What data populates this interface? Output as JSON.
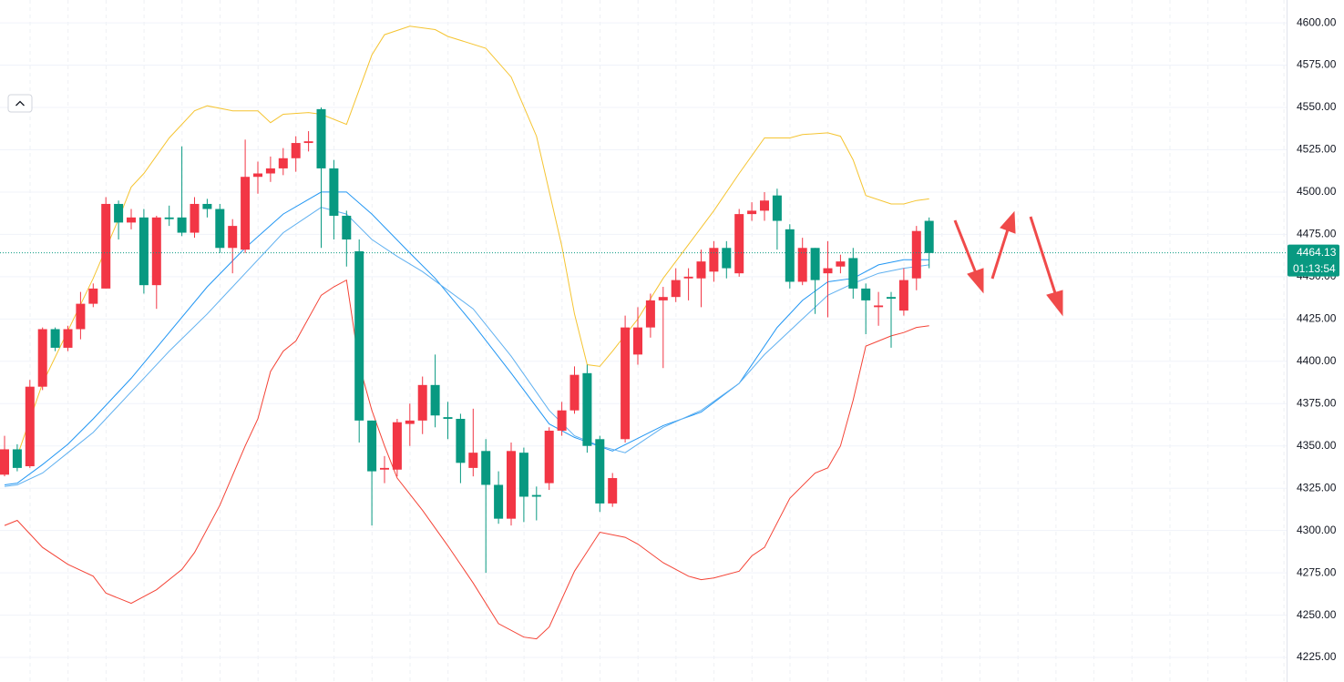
{
  "chart_data": {
    "type": "candlestick",
    "open": [
      4333,
      4348,
      4338,
      4385,
      4419,
      4408,
      4419,
      4434,
      4443,
      4493,
      4482,
      4485,
      4445,
      4485,
      4485,
      4476,
      4493,
      4490,
      4467,
      4466,
      4509,
      4511,
      4514,
      4520,
      4529,
      4549,
      4514,
      4486,
      4465,
      4365,
      4336,
      4336,
      4363,
      4365,
      4386,
      4367,
      4366,
      4337,
      4347,
      4327,
      4307,
      4346,
      4321,
      4328,
      4359,
      4371,
      4393,
      4354,
      4316,
      4354,
      4404,
      4420,
      4436,
      4438,
      4449,
      4449,
      4453,
      4467,
      4452,
      4487,
      4489,
      4498,
      4478,
      4447,
      4467,
      4452,
      4456,
      4461,
      4443,
      4432,
      4438,
      4430,
      4449,
      4483
    ],
    "high": [
      4356,
      4351,
      4389,
      4420,
      4420,
      4421,
      4441,
      4446,
      4497,
      4495,
      4490,
      4490,
      4486,
      4492,
      4527,
      4497,
      4496,
      4493,
      4484,
      4531,
      4518,
      4521,
      4526,
      4533,
      4536,
      4550,
      4519,
      4489,
      4472,
      4365,
      4344,
      4366,
      4375,
      4391,
      4404,
      4376,
      4369,
      4372,
      4354,
      4335,
      4352,
      4349,
      4326,
      4361,
      4376,
      4397,
      4398,
      4356,
      4334,
      4427,
      4432,
      4440,
      4444,
      4455,
      4455,
      4466,
      4471,
      4471,
      4490,
      4494,
      4500,
      4502,
      4481,
      4473,
      4467,
      4471,
      4463,
      4467,
      4446,
      4441,
      4441,
      4455,
      4480,
      4485
    ],
    "low": [
      4332,
      4335,
      4337,
      4383,
      4406,
      4406,
      4413,
      4432,
      4443,
      4472,
      4478,
      4440,
      4431,
      4480,
      4474,
      4473,
      4485,
      4464,
      4452,
      4464,
      4499,
      4506,
      4510,
      4512,
      4524,
      4467,
      4472,
      4456,
      4352,
      4303,
      4328,
      4332,
      4350,
      4357,
      4361,
      4354,
      4328,
      4332,
      4275,
      4304,
      4303,
      4305,
      4306,
      4324,
      4356,
      4369,
      4346,
      4311,
      4314,
      4352,
      4398,
      4414,
      4396,
      4435,
      4436,
      4432,
      4447,
      4449,
      4450,
      4483,
      4483,
      4466,
      4443,
      4445,
      4428,
      4426,
      4452,
      4437,
      4416,
      4421,
      4408,
      4427,
      4442,
      4455
    ],
    "close": [
      4348,
      4337,
      4385,
      4419,
      4408,
      4419,
      4434,
      4443,
      4493,
      4482,
      4485,
      4445,
      4485,
      4484,
      4476,
      4493,
      4490,
      4467,
      4480,
      4509,
      4511,
      4514,
      4520,
      4529,
      4530,
      4514,
      4486,
      4472,
      4365,
      4335,
      4337,
      4364,
      4365,
      4386,
      4368,
      4366,
      4340,
      4346,
      4327,
      4307,
      4347,
      4320,
      4320,
      4359,
      4371,
      4392,
      4350,
      4316,
      4331,
      4420,
      4420,
      4436,
      4438,
      4448,
      4450,
      4459,
      4467,
      4455,
      4487,
      4489,
      4495,
      4483,
      4447,
      4467,
      4448,
      4455,
      4459,
      4443,
      4436,
      4433,
      4437,
      4448,
      4477,
      4464
    ],
    "up_color": "#f23645",
    "down_color": "#089981",
    "ylim": [
      4210.5,
      4613.5
    ],
    "yticks": [
      {
        "value": 4225,
        "label": "4225.00"
      },
      {
        "value": 4250,
        "label": "4250.00"
      },
      {
        "value": 4275,
        "label": "4275.00"
      },
      {
        "value": 4300,
        "label": "4300.00"
      },
      {
        "value": 4325,
        "label": "4325.00"
      },
      {
        "value": 4350,
        "label": "4350.00"
      },
      {
        "value": 4375,
        "label": "4375.00"
      },
      {
        "value": 4400,
        "label": "4400.00"
      },
      {
        "value": 4425,
        "label": "4425.00"
      },
      {
        "value": 4450,
        "label": "4450.00"
      },
      {
        "value": 4475,
        "label": "4475.00"
      },
      {
        "value": 4500,
        "label": "4500.00"
      },
      {
        "value": 4525,
        "label": "4525.00"
      },
      {
        "value": 4550,
        "label": "4550.00"
      },
      {
        "value": 4575,
        "label": "4575.00"
      },
      {
        "value": 4600,
        "label": "4600.00"
      }
    ],
    "lines": [
      {
        "color": "#f5c431",
        "x": [
          1,
          3,
          7,
          9,
          10,
          11,
          13,
          15,
          16,
          18,
          20,
          21,
          22,
          24,
          25,
          27,
          29,
          30,
          32,
          34,
          35,
          38,
          40,
          42,
          44,
          45,
          46,
          47,
          48,
          50,
          52,
          54,
          56,
          58,
          60,
          62,
          63,
          65,
          66,
          67,
          68,
          70,
          71,
          72,
          73
        ],
        "values": [
          4344,
          4387,
          4449,
          4484,
          4503,
          4511,
          4532,
          4548,
          4551,
          4548,
          4548,
          4541,
          4546,
          4547,
          4546,
          4540,
          4581,
          4593,
          4598,
          4596,
          4592,
          4585,
          4568,
          4533,
          4468,
          4428,
          4398,
          4397,
          4406,
          4425,
          4449,
          4469,
          4489,
          4511,
          4532,
          4532,
          4534,
          4535,
          4533,
          4519,
          4498,
          4493,
          4493,
          4495,
          4496
        ]
      },
      {
        "color": "#f44336",
        "x": [
          0,
          1,
          3,
          5,
          7,
          8,
          10,
          12,
          14,
          15,
          17,
          19,
          20,
          21,
          22,
          23,
          25,
          26,
          27,
          28,
          29,
          30,
          31,
          33,
          35,
          37,
          39,
          41,
          42,
          43,
          45,
          47,
          49,
          50,
          52,
          54,
          55,
          56,
          58,
          59,
          60,
          62,
          64,
          65,
          66,
          67,
          68,
          70,
          71,
          72,
          73
        ],
        "values": [
          4303,
          4306,
          4290,
          4280,
          4273,
          4263,
          4257,
          4265,
          4277,
          4287,
          4315,
          4350,
          4366,
          4394,
          4406,
          4412,
          4439,
          4444,
          4448,
          4398,
          4371,
          4350,
          4331,
          4312,
          4291,
          4269,
          4245,
          4237,
          4236,
          4243,
          4276,
          4299,
          4296,
          4292,
          4281,
          4273,
          4271,
          4272,
          4276,
          4285,
          4290,
          4319,
          4334,
          4337,
          4350,
          4377,
          4409,
          4415,
          4417,
          4420,
          4421
        ]
      },
      {
        "color": "#2196f3",
        "x": [
          0,
          1,
          3,
          5,
          7,
          10,
          13,
          16,
          19,
          22,
          25,
          27,
          29,
          32,
          34,
          37,
          40,
          43,
          45,
          48,
          52,
          55,
          58,
          61,
          63,
          65,
          67,
          69,
          71,
          73
        ],
        "values": [
          4327,
          4328,
          4339,
          4351,
          4366,
          4390,
          4417,
          4444,
          4467,
          4487,
          4500,
          4500,
          4487,
          4464,
          4449,
          4422,
          4393,
          4363,
          4355,
          4347,
          4362,
          4370,
          4387,
          4420,
          4436,
          4447,
          4449,
          4457,
          4460,
          4460
        ]
      },
      {
        "color": "#5fb0f0",
        "x": [
          0,
          1,
          3,
          5,
          7,
          10,
          13,
          16,
          19,
          22,
          25,
          27,
          29,
          31,
          33,
          37,
          40,
          43,
          45,
          47,
          49,
          52,
          55,
          58,
          60,
          63,
          65,
          67,
          69,
          71,
          73
        ],
        "values": [
          4326,
          4327,
          4334,
          4346,
          4358,
          4382,
          4406,
          4428,
          4452,
          4476,
          4491,
          4487,
          4472,
          4462,
          4453,
          4431,
          4403,
          4371,
          4356,
          4350,
          4346,
          4361,
          4371,
          4387,
          4404,
          4425,
          4439,
          4446,
          4452,
          4455,
          4457
        ]
      }
    ],
    "last_price": 4464.13,
    "countdown": "01:13:54"
  }
}
